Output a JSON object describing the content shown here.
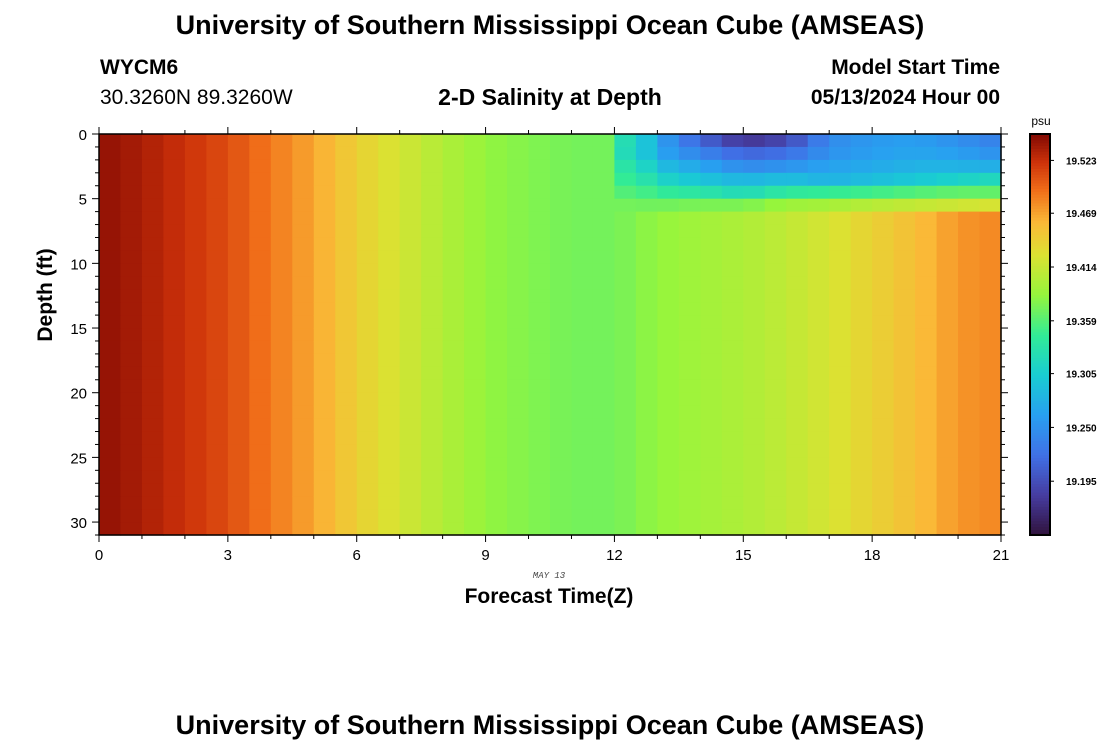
{
  "header": {
    "title": "University of Southern Mississippi Ocean Cube (AMSEAS)",
    "station": "WYCM6",
    "coords": "30.3260N  89.3260W",
    "subtitle": "2-D Salinity at Depth",
    "model_start_label": "Model Start Time",
    "model_start_value": "05/13/2024 Hour 00"
  },
  "footer": {
    "title": "University of Southern Mississippi Ocean Cube (AMSEAS)"
  },
  "chart_data": {
    "type": "heatmap",
    "title": "2-D Salinity at Depth",
    "xlabel": "Forecast Time(Z)",
    "ylabel": "Depth (ft)",
    "date_label": "MAY 13",
    "x_ticks": [
      0,
      3,
      6,
      9,
      12,
      15,
      18,
      21
    ],
    "y_ticks": [
      0,
      5,
      10,
      15,
      20,
      25,
      30
    ],
    "xlim": [
      0,
      21
    ],
    "ylim": [
      31,
      0
    ],
    "columns_per_hour": 2,
    "n_columns": 42,
    "n_rows": 31,
    "colorbar": {
      "unit": "psu",
      "ticks": [
        "19.523",
        "19.469",
        "19.414",
        "19.359",
        "19.305",
        "19.250",
        "19.195"
      ],
      "tick_values": [
        19.523,
        19.469,
        19.414,
        19.359,
        19.305,
        19.25,
        19.195
      ],
      "range": [
        19.14,
        19.55
      ]
    },
    "deep_profile_by_hour": [
      19.545,
      19.535,
      19.522,
      19.508,
      19.488,
      19.468,
      19.442,
      19.421,
      19.402,
      19.385,
      19.378,
      19.372,
      19.372,
      19.385,
      19.393,
      19.4,
      19.41,
      19.423,
      19.44,
      19.455,
      19.475,
      19.482
    ],
    "surface_layer": {
      "start_hour": 12.25,
      "depth_ft": [
        0,
        1,
        2,
        3,
        4,
        5
      ],
      "values_by_hour": [
        {
          "hour": 12.5,
          "values": [
            19.325,
            19.322,
            19.334,
            19.345,
            19.358,
            19.372
          ]
        },
        {
          "hour": 13,
          "values": [
            19.265,
            19.268,
            19.29,
            19.315,
            19.345,
            19.37
          ]
        },
        {
          "hour": 14,
          "values": [
            19.215,
            19.24,
            19.268,
            19.295,
            19.335,
            19.375
          ]
        },
        {
          "hour": 15,
          "values": [
            19.175,
            19.215,
            19.245,
            19.282,
            19.32,
            19.375
          ]
        },
        {
          "hour": 16,
          "values": [
            19.19,
            19.222,
            19.252,
            19.29,
            19.34,
            19.39
          ]
        },
        {
          "hour": 17,
          "values": [
            19.245,
            19.252,
            19.265,
            19.28,
            19.345,
            19.395
          ]
        },
        {
          "hour": 18,
          "values": [
            19.258,
            19.262,
            19.272,
            19.29,
            19.35,
            19.405
          ]
        },
        {
          "hour": 19,
          "values": [
            19.262,
            19.268,
            19.28,
            19.3,
            19.358,
            19.412
          ]
        },
        {
          "hour": 20,
          "values": [
            19.25,
            19.262,
            19.28,
            19.31,
            19.365,
            19.418
          ]
        },
        {
          "hour": 21,
          "values": [
            19.235,
            19.25,
            19.275,
            19.32,
            19.365,
            19.425
          ]
        }
      ],
      "transition_ft": 6.5
    }
  }
}
